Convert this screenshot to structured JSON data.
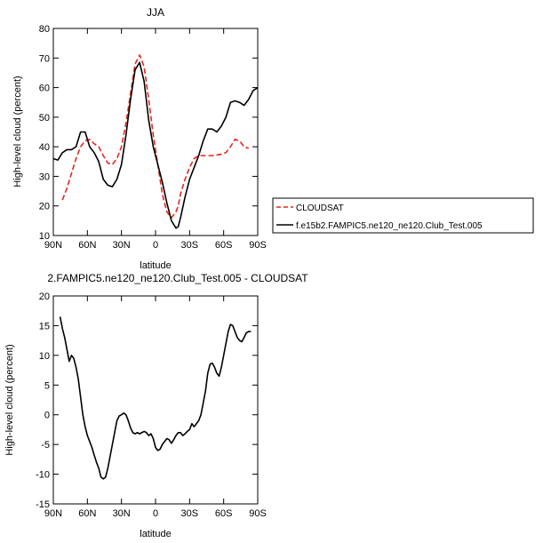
{
  "chart_data": [
    {
      "type": "line",
      "title": "JJA",
      "xlabel": "latitude",
      "ylabel": "High-level cloud (percent)",
      "xlim": [
        90,
        -90
      ],
      "ylim": [
        10,
        80
      ],
      "x_tick_values": [
        90,
        60,
        30,
        0,
        -30,
        -60,
        -90
      ],
      "x_tick_labels": [
        "90N",
        "60N",
        "30N",
        "0",
        "30S",
        "60S",
        "90S"
      ],
      "y_ticks": [
        10,
        20,
        30,
        40,
        50,
        60,
        70,
        80
      ],
      "legend": {
        "placement": "right-of-plot",
        "entries": [
          "CLOUDSAT",
          "f.e15b2.FAMPIC5.ne120_ne120.Club_Test.005"
        ]
      },
      "series": [
        {
          "name": "CLOUDSAT",
          "color": "#e8261e",
          "dash": "dashed",
          "x": [
            82,
            78,
            74,
            70,
            66,
            62,
            58,
            54,
            50,
            46,
            42,
            38,
            34,
            30,
            26,
            22,
            18,
            14,
            10,
            6,
            2,
            -2,
            -6,
            -10,
            -14,
            -18,
            -20,
            -22,
            -26,
            -30,
            -34,
            -38,
            -42,
            -46,
            -50,
            -54,
            -58,
            -62,
            -66,
            -70,
            -74,
            -78,
            -82
          ],
          "y": [
            22,
            26,
            31,
            36,
            40,
            42,
            42.5,
            41,
            40,
            37,
            34.5,
            34,
            36,
            40,
            48,
            58,
            68,
            71,
            67,
            56,
            44,
            34,
            24,
            18,
            16,
            18,
            20,
            24,
            29,
            33,
            36,
            37,
            37,
            37,
            37,
            37.2,
            37.5,
            38,
            40,
            42.5,
            42,
            40,
            39.5
          ]
        },
        {
          "name": "f.e15b2.FAMPIC5.ne120_ne120.Club_Test.005",
          "color": "#000000",
          "dash": "solid",
          "x": [
            90,
            86,
            82,
            78,
            74,
            70,
            66,
            62,
            58,
            54,
            50,
            46,
            42,
            38,
            34,
            30,
            26,
            22,
            18,
            14,
            10,
            6,
            2,
            -2,
            -6,
            -10,
            -14,
            -18,
            -20,
            -22,
            -26,
            -30,
            -34,
            -38,
            -42,
            -46,
            -50,
            -54,
            -58,
            -62,
            -66,
            -70,
            -74,
            -78,
            -82,
            -86,
            -90
          ],
          "y": [
            36,
            35.5,
            38,
            39,
            39,
            40,
            45,
            45,
            40,
            38,
            35,
            29,
            27,
            26.5,
            29,
            34,
            44,
            56,
            66,
            68.5,
            62,
            49,
            40,
            34,
            28,
            21,
            15,
            12.5,
            13,
            16,
            23,
            29,
            33,
            37,
            42,
            46,
            46,
            45,
            47,
            50,
            55,
            55.5,
            55,
            54,
            56,
            59,
            60
          ]
        }
      ]
    },
    {
      "type": "line",
      "title": "2.FAMPIC5.ne120_ne120.Club_Test.005 - CLOUDSAT",
      "xlabel": "latitude",
      "ylabel": "High-level cloud (percent)",
      "xlim": [
        90,
        -90
      ],
      "ylim": [
        -15,
        20
      ],
      "x_tick_values": [
        90,
        60,
        30,
        0,
        -30,
        -60,
        -90
      ],
      "x_tick_labels": [
        "90N",
        "60N",
        "30N",
        "0",
        "30S",
        "60S",
        "90S"
      ],
      "y_ticks": [
        -15,
        -10,
        -5,
        0,
        5,
        10,
        15,
        20
      ],
      "series": [
        {
          "color": "#000000",
          "dash": "solid",
          "x": [
            84,
            82,
            80,
            78,
            76,
            74,
            72,
            70,
            68,
            66,
            64,
            62,
            60,
            58,
            56,
            54,
            52,
            50,
            48,
            46,
            44,
            42,
            40,
            38,
            36,
            34,
            32,
            30,
            28,
            26,
            24,
            22,
            20,
            18,
            16,
            14,
            12,
            10,
            8,
            6,
            4,
            2,
            0,
            -2,
            -4,
            -6,
            -8,
            -10,
            -12,
            -14,
            -16,
            -18,
            -20,
            -22,
            -24,
            -26,
            -28,
            -30,
            -32,
            -34,
            -36,
            -38,
            -40,
            -42,
            -44,
            -46,
            -48,
            -50,
            -52,
            -54,
            -56,
            -58,
            -60,
            -62,
            -64,
            -66,
            -68,
            -70,
            -72,
            -74,
            -76,
            -78,
            -80,
            -82,
            -84
          ],
          "y": [
            16.5,
            14.5,
            13,
            11,
            9,
            10,
            9.5,
            8,
            6,
            3,
            0,
            -2,
            -3.5,
            -4.5,
            -5.5,
            -6.8,
            -8,
            -9,
            -10.5,
            -10.8,
            -10.5,
            -9,
            -7,
            -5,
            -3,
            -1,
            -0.2,
            0,
            0.3,
            0,
            -1,
            -2.2,
            -3,
            -3.2,
            -3,
            -3.2,
            -3,
            -2.8,
            -3,
            -3.5,
            -3.2,
            -4,
            -5.5,
            -6,
            -5.8,
            -5,
            -4.5,
            -4,
            -4.2,
            -4.8,
            -4.2,
            -3.5,
            -3,
            -3,
            -3.5,
            -3.2,
            -2.8,
            -2.5,
            -1.5,
            -2,
            -1.5,
            -1,
            0,
            2,
            4,
            7,
            8.5,
            8.7,
            8,
            7,
            6.5,
            8,
            10,
            12,
            14,
            15.2,
            15.0,
            14,
            13,
            12.5,
            12.3,
            13,
            13.8,
            14,
            14
          ]
        }
      ]
    }
  ]
}
